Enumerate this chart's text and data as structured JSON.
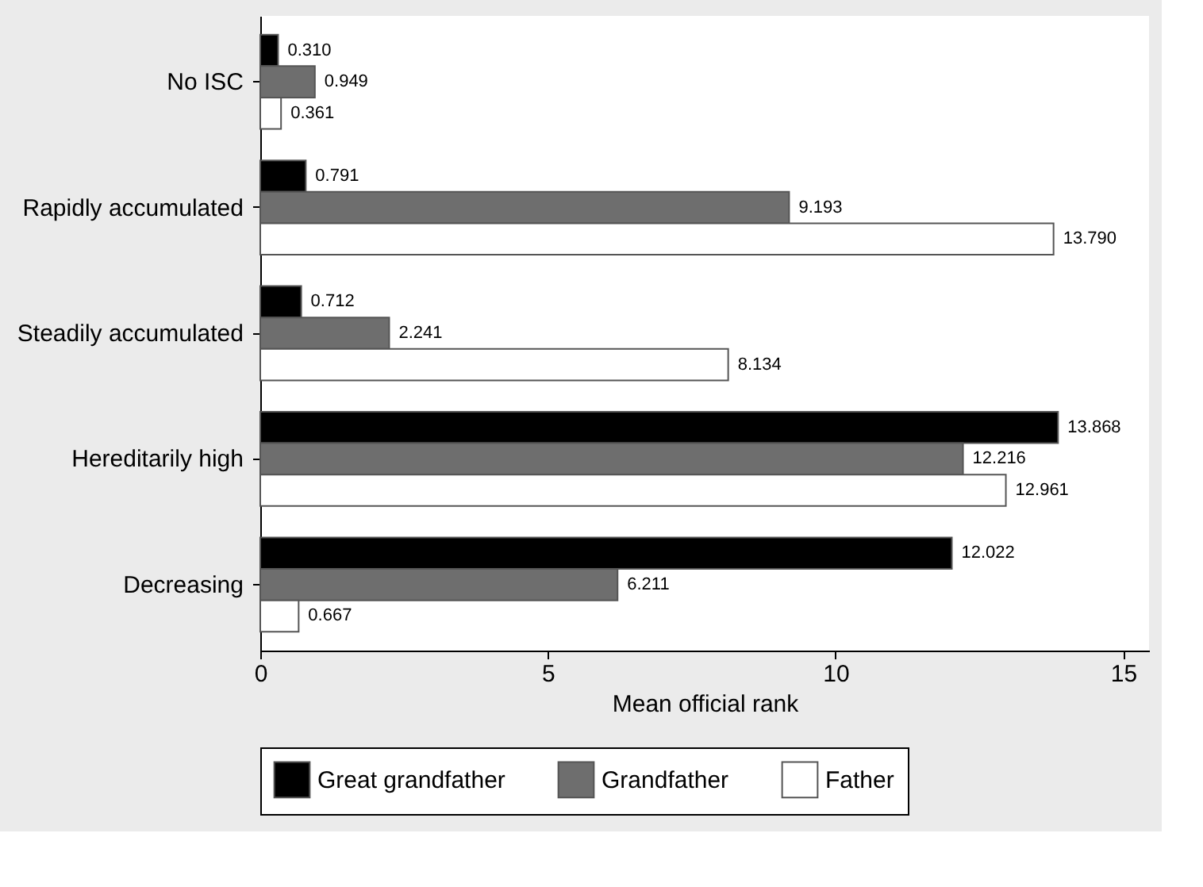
{
  "chart_data": {
    "type": "bar",
    "orientation": "horizontal",
    "xlabel": "Mean official rank",
    "categories": [
      "No ISC",
      "Rapidly accumulated",
      "Steadily accumulated",
      "Hereditarily high",
      "Decreasing"
    ],
    "series": [
      {
        "name": "Great grandfather",
        "color": "#000000",
        "values": [
          0.31,
          0.791,
          0.712,
          13.868,
          12.022
        ],
        "value_labels": [
          "0.310",
          "0.791",
          "0.712",
          "13.868",
          "12.022"
        ]
      },
      {
        "name": "Grandfather",
        "color": "#6e6e6e",
        "values": [
          0.949,
          9.193,
          2.241,
          12.216,
          6.211
        ],
        "value_labels": [
          "0.949",
          "9.193",
          "2.241",
          "12.216",
          "6.211"
        ]
      },
      {
        "name": "Father",
        "color": "#ffffff",
        "values": [
          0.361,
          13.79,
          8.134,
          12.961,
          0.667
        ],
        "value_labels": [
          "0.361",
          "13.790",
          "8.134",
          "12.961",
          "0.667"
        ]
      }
    ],
    "xlim": [
      0,
      15.45
    ],
    "xticks": [
      0,
      5,
      10,
      15
    ],
    "grid": false,
    "legend": "bottom"
  }
}
